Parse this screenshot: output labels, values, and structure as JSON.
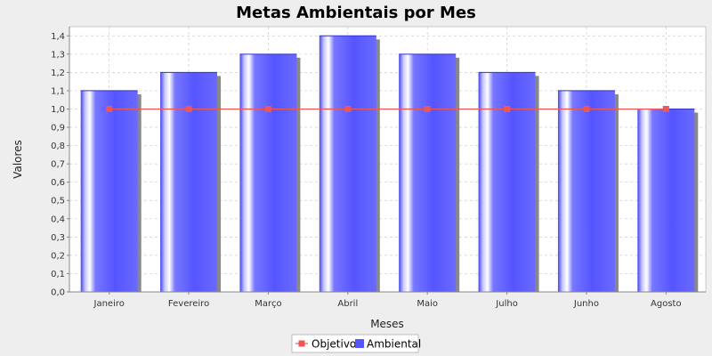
{
  "chart_data": {
    "type": "bar",
    "title": "Metas Ambientais por Mes",
    "xlabel": "Meses",
    "ylabel": "Valores",
    "categories": [
      "Janeiro",
      "Fevereiro",
      "Março",
      "Abril",
      "Maio",
      "Julho",
      "Junho",
      "Agosto"
    ],
    "series": [
      {
        "name": "Ambiental",
        "type": "bar",
        "values": [
          1.1,
          1.2,
          1.3,
          1.4,
          1.3,
          1.2,
          1.1,
          1.0
        ],
        "color": "#5555ff"
      },
      {
        "name": "Objetivo",
        "type": "line",
        "values": [
          1.0,
          1.0,
          1.0,
          1.0,
          1.0,
          1.0,
          1.0,
          1.0
        ],
        "color": "#ee5555"
      }
    ],
    "ylim": [
      0,
      1.45
    ],
    "yticks": [
      "0,0",
      "0,1",
      "0,2",
      "0,3",
      "0,4",
      "0,5",
      "0,6",
      "0,7",
      "0,8",
      "0,9",
      "1,0",
      "1,1",
      "1,2",
      "1,3",
      "1,4"
    ],
    "grid": true,
    "legend": "bottom"
  },
  "colors": {
    "background": "#eeeeee",
    "plot_background": "#ffffff",
    "gridline": "#cccccc",
    "bar_shadow": "#888888"
  }
}
